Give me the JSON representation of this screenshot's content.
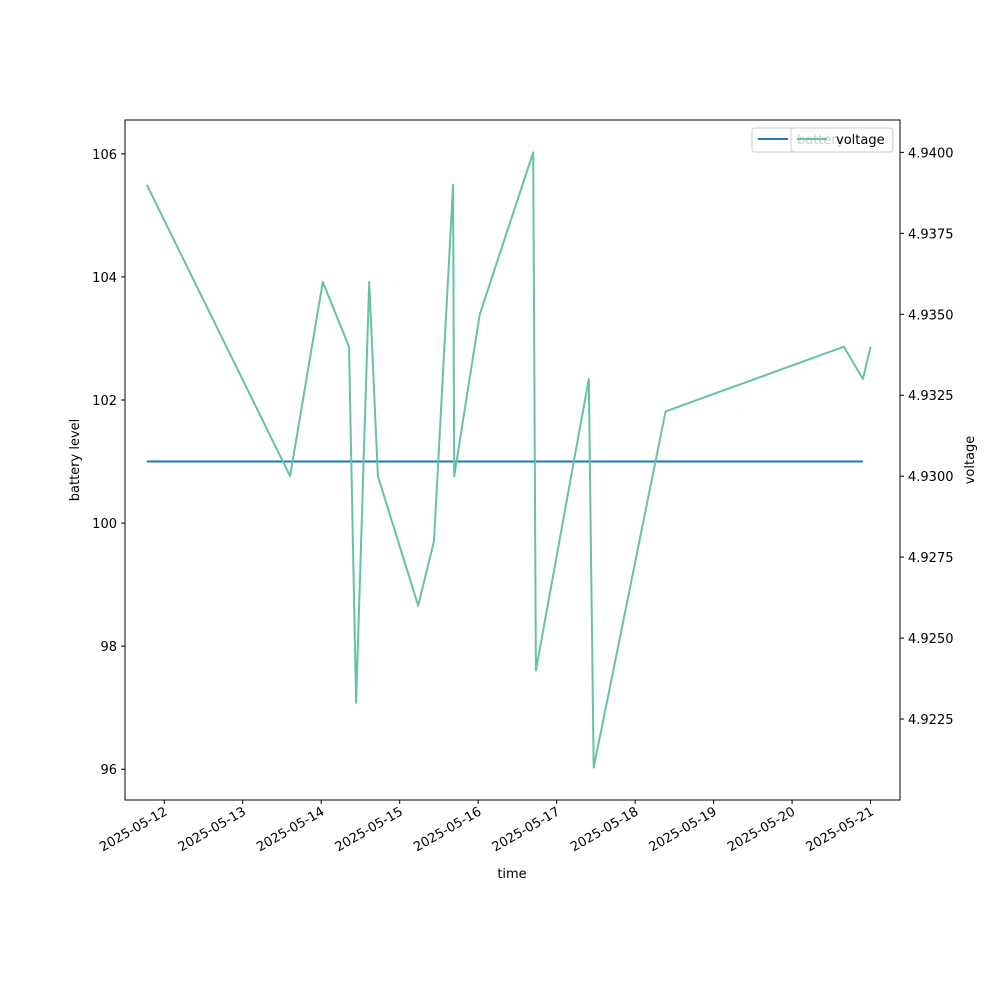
{
  "chart_data": {
    "type": "line",
    "title": "",
    "xlabel": "time",
    "ylabel": "battery level",
    "ylabel_right": "voltage",
    "x_ticks": [
      "2025-05-12",
      "2025-05-13",
      "2025-05-14",
      "2025-05-15",
      "2025-05-16",
      "2025-05-17",
      "2025-05-18",
      "2025-05-19",
      "2025-05-20",
      "2025-05-21"
    ],
    "x_range": [
      "2025-05-11 12:00",
      "2025-05-21 09:00"
    ],
    "y_left": {
      "ticks": [
        96,
        98,
        100,
        102,
        104,
        106
      ],
      "tick_labels": [
        "96",
        "98",
        "100",
        "102",
        "104",
        "106"
      ],
      "ylim": [
        95.5,
        106.55
      ]
    },
    "y_right": {
      "ticks": [
        4.9225,
        4.925,
        4.9275,
        4.93,
        4.9325,
        4.935,
        4.9375,
        4.94
      ],
      "tick_labels": [
        "4.9225",
        "4.9250",
        "4.9275",
        "4.9300",
        "4.9325",
        "4.9350",
        "4.9375",
        "4.9400"
      ],
      "ylim": [
        4.92,
        4.941
      ]
    },
    "legend": {
      "placement": "top-right",
      "overlapping": true
    },
    "series": [
      {
        "name": "battery",
        "axis": "left",
        "color": "#1f77b4",
        "points": [
          {
            "x": "2025-05-11 18:40",
            "y": 101
          },
          {
            "x": "2025-05-20 21:40",
            "y": 101
          }
        ]
      },
      {
        "name": "voltage",
        "axis": "right",
        "color": "#66c2a5",
        "points": [
          {
            "x": "2025-05-11 18:40",
            "y": 4.939
          },
          {
            "x": "2025-05-13 14:30",
            "y": 4.93
          },
          {
            "x": "2025-05-14 00:30",
            "y": 4.936
          },
          {
            "x": "2025-05-14 08:30",
            "y": 4.934
          },
          {
            "x": "2025-05-14 10:40",
            "y": 4.923
          },
          {
            "x": "2025-05-14 14:40",
            "y": 4.936
          },
          {
            "x": "2025-05-14 17:20",
            "y": 4.93
          },
          {
            "x": "2025-05-15 05:40",
            "y": 4.926
          },
          {
            "x": "2025-05-15 10:30",
            "y": 4.928
          },
          {
            "x": "2025-05-15 16:20",
            "y": 4.939
          },
          {
            "x": "2025-05-15 16:40",
            "y": 4.93
          },
          {
            "x": "2025-05-16 00:30",
            "y": 4.935
          },
          {
            "x": "2025-05-16 16:50",
            "y": 4.94
          },
          {
            "x": "2025-05-16 17:40",
            "y": 4.924
          },
          {
            "x": "2025-05-17 09:50",
            "y": 4.933
          },
          {
            "x": "2025-05-17 11:20",
            "y": 4.921
          },
          {
            "x": "2025-05-18 09:20",
            "y": 4.932
          },
          {
            "x": "2025-05-20 15:50",
            "y": 4.934
          },
          {
            "x": "2025-05-20 21:40",
            "y": 4.933
          },
          {
            "x": "2025-05-21 00:00",
            "y": 4.934
          }
        ]
      }
    ]
  }
}
